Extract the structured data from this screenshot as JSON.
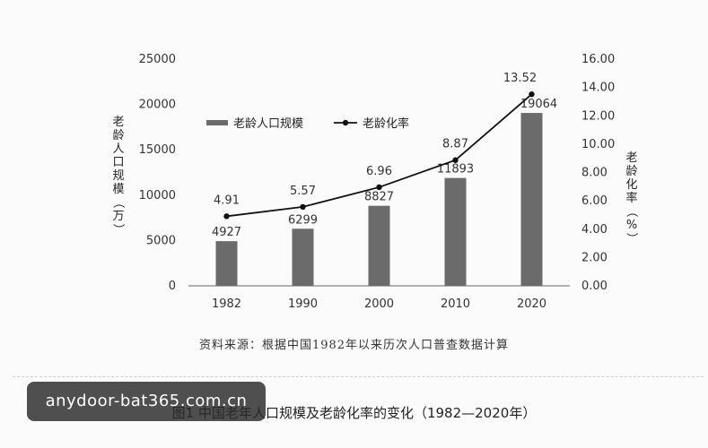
{
  "chart_data": {
    "type": "bar",
    "categories": [
      "1982",
      "1990",
      "2000",
      "2010",
      "2020"
    ],
    "series": [
      {
        "name": "老龄人口规模",
        "type": "bar",
        "axis": "left",
        "values": [
          4927,
          6299,
          8827,
          11893,
          19064
        ]
      },
      {
        "name": "老龄化率",
        "type": "line",
        "axis": "right",
        "values": [
          4.91,
          5.57,
          6.96,
          8.87,
          13.52
        ]
      }
    ],
    "left_axis": {
      "label": "老龄人口规模（万）",
      "ylim": [
        0,
        25000
      ],
      "ticks": [
        "0",
        "5000",
        "10000",
        "15000",
        "20000",
        "25000"
      ]
    },
    "right_axis": {
      "label": "老龄化率（%）",
      "ylim": [
        0,
        16
      ],
      "ticks": [
        "0.00",
        "2.00",
        "4.00",
        "6.00",
        "8.00",
        "10.00",
        "12.00",
        "14.00",
        "16.00"
      ]
    },
    "legend_position": "top-left",
    "grid": false,
    "source": "资料来源：根据中国1982年以来历次人口普查数据计算",
    "caption": "图1 中国老年人口规模及老龄化率的变化（1982—2020年）"
  },
  "colors": {
    "bar": "#6b6b6b",
    "line": "#111111"
  },
  "watermark": "anydoor-bat365.com.cn"
}
